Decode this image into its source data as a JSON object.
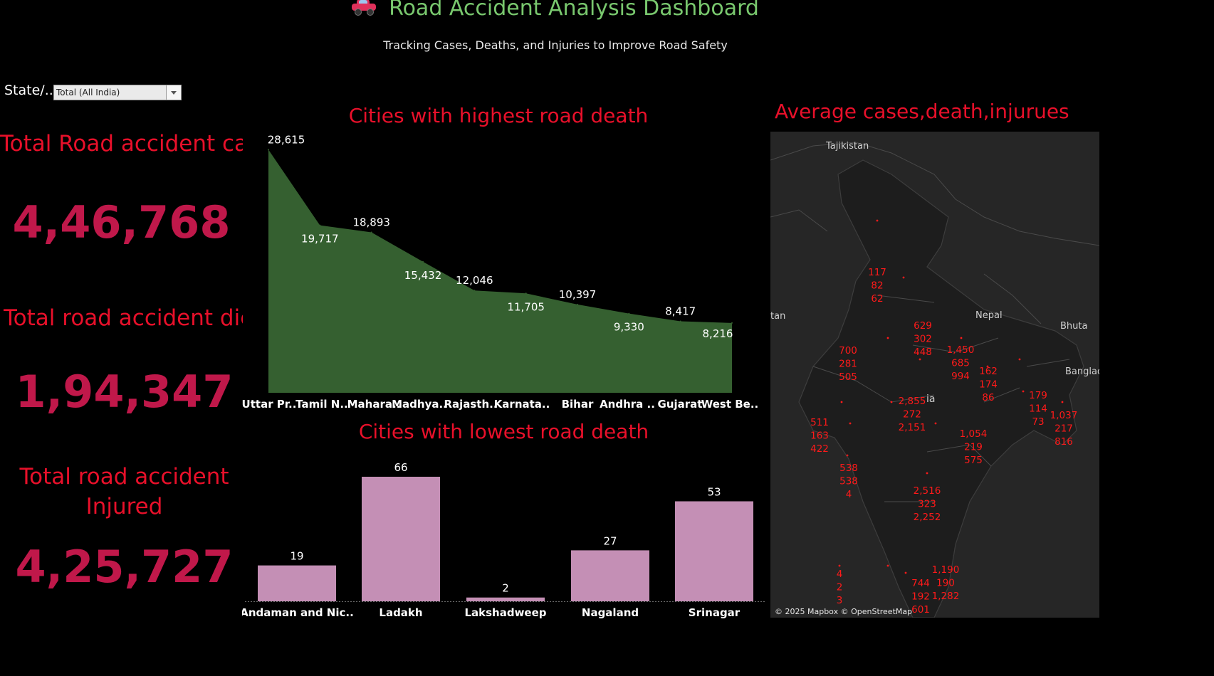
{
  "header": {
    "icon": "car-icon",
    "title": "Road Accident Analysis Dashboard",
    "subtitle": "Tracking Cases, Deaths, and Injuries to Improve Road Safety"
  },
  "filter": {
    "label": "State/..",
    "value": "Total (All India)"
  },
  "kpis": {
    "cases_label": "Total Road accident cases",
    "cases_value": "4,46,768",
    "died_label": "Total road accident died",
    "died_value": "1,94,347",
    "injured_label_1": "Total road accident",
    "injured_label_2": "Injured",
    "injured_value": "4,25,727"
  },
  "colors": {
    "background": "#000000",
    "title_green": "#79c86e",
    "kpi_red": "#e8102a",
    "kpi_value_crimson": "#c0184a",
    "area_fill": "#356030",
    "bar_fill": "#c48fb5",
    "map_bg": "#252525",
    "map_labels": "#ff1a1a"
  },
  "chart_data": [
    {
      "type": "area",
      "title": "Cities with highest road death",
      "categories": [
        "Uttar Pr..",
        "Tamil N..",
        "Mahara..",
        "Madhya..",
        "Rajasth..",
        "Karnata..",
        "Bihar",
        "Andhra ..",
        "Gujarat",
        "West Be.."
      ],
      "values": [
        28615,
        19717,
        18893,
        15432,
        12046,
        11705,
        10397,
        9330,
        8417,
        8216
      ],
      "value_labels": [
        "28,615",
        "19,717",
        "18,893",
        "15,432",
        "12,046",
        "11,705",
        "10,397",
        "9,330",
        "8,417",
        "8,216"
      ],
      "ylim": [
        0,
        30000
      ],
      "grid": false
    },
    {
      "type": "bar",
      "title": "Cities with lowest road death",
      "categories": [
        "Andaman and Nic..",
        "Ladakh",
        "Lakshadweep",
        "Nagaland",
        "Srinagar"
      ],
      "values": [
        19,
        66,
        2,
        27,
        53
      ],
      "ylim": [
        0,
        70
      ],
      "grid": false
    }
  ],
  "map": {
    "title": "Average cases,death,injurues",
    "attribution": "© 2025 Mapbox © OpenStreetMap",
    "place_labels": [
      "Tajikistan",
      "Nepal",
      "Bhuta",
      "Banglad",
      "tan",
      "ia"
    ],
    "clusters": [
      [
        "117",
        "82",
        "62"
      ],
      [
        "629",
        "302",
        "448"
      ],
      [
        "700",
        "281",
        "505"
      ],
      [
        "1,450",
        "685",
        "994"
      ],
      [
        "162",
        "174",
        "86"
      ],
      [
        "179",
        "114",
        "73"
      ],
      [
        "1,037",
        "217",
        "816"
      ],
      [
        "2,855",
        "272",
        "2,151"
      ],
      [
        "511",
        "163",
        "422"
      ],
      [
        "1,054",
        "219",
        "575"
      ],
      [
        "538",
        "538",
        "4"
      ],
      [
        "2,516",
        "323",
        "2,252"
      ],
      [
        "4",
        "2",
        "3"
      ],
      [
        "1,190",
        "190",
        "1,282"
      ],
      [
        "744",
        "192",
        "601"
      ]
    ]
  }
}
